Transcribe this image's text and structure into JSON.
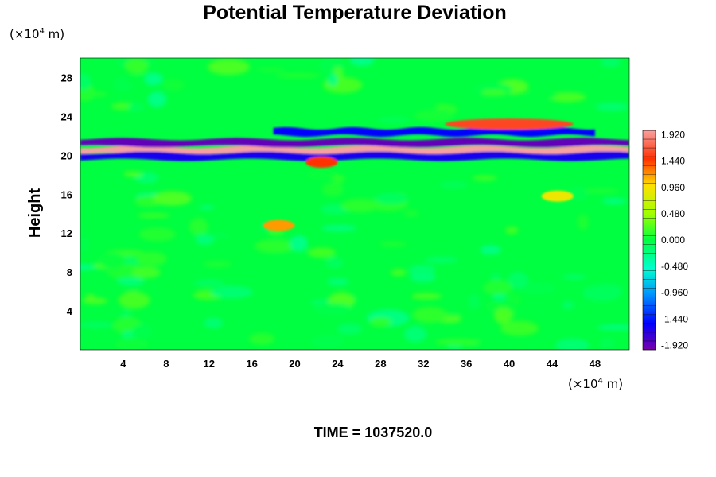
{
  "chart_data": {
    "type": "heatmap",
    "title": "Potential Temperature Deviation",
    "ylabel": "Height",
    "xlabel": "",
    "x_unit": {
      "prefix": "(×10",
      "exp": "4",
      "suffix": " m)"
    },
    "y_unit": {
      "prefix": "(×10",
      "exp": "4",
      "suffix": " m)"
    },
    "xlim": [
      0,
      51.2
    ],
    "ylim": [
      0,
      30
    ],
    "x_ticks": [
      4,
      8,
      12,
      16,
      20,
      24,
      28,
      32,
      36,
      40,
      44,
      48
    ],
    "y_ticks": [
      4,
      8,
      12,
      16,
      20,
      24,
      28
    ],
    "x_tick_labels": [
      "4",
      "8",
      "12",
      "16",
      "20",
      "24",
      "28",
      "32",
      "36",
      "40",
      "44",
      "48"
    ],
    "y_tick_labels": [
      "4",
      "8",
      "12",
      "16",
      "20",
      "24",
      "28"
    ],
    "colorbar": {
      "min": -2.0,
      "max": 2.0,
      "ticks": [
        1.92,
        1.44,
        0.96,
        0.48,
        0.0,
        -0.48,
        -0.96,
        -1.44,
        -1.92
      ],
      "tick_labels": [
        "1.920",
        "1.440",
        "0.960",
        "0.480",
        "0.000",
        "-0.480",
        "-0.960",
        "-1.440",
        "-1.920"
      ]
    },
    "features": [
      {
        "x0": 0,
        "x1": 51.2,
        "y": 20.5,
        "value": 2.0
      },
      {
        "x0": 0,
        "x1": 51.2,
        "y": 21.3,
        "value": -1.9
      },
      {
        "x0": 0,
        "x1": 51.2,
        "y": 19.9,
        "value": -1.6
      },
      {
        "x0": 18,
        "x1": 48,
        "y": 22.4,
        "value": -1.5
      },
      {
        "x0": 34,
        "x1": 46,
        "y": 23.2,
        "value": 1.6
      },
      {
        "x0": 17,
        "x1": 20,
        "y": 12.8,
        "value": 1.2
      },
      {
        "x0": 43,
        "x1": 46,
        "y": 15.8,
        "value": 0.9
      },
      {
        "x0": 21,
        "x1": 24,
        "y": 19.3,
        "value": 1.5
      }
    ],
    "annotation": {
      "label": "TIME = ",
      "value": "1037520.0"
    }
  }
}
